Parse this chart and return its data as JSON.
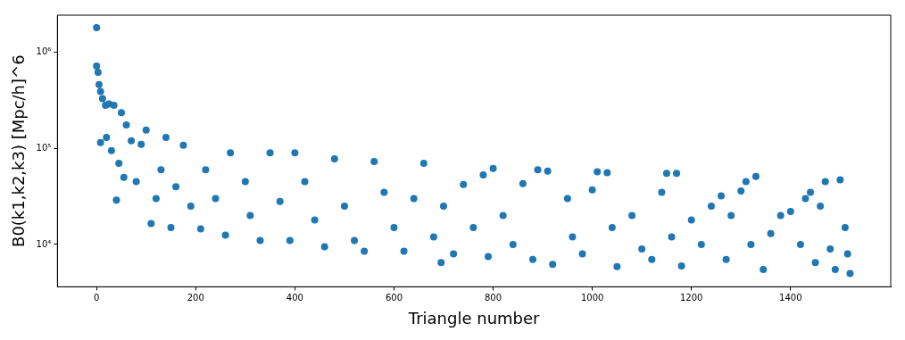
{
  "chart_data": {
    "type": "scatter",
    "xlabel": "Triangle number",
    "ylabel": "B0(k1,k2,k3) [Mpc/h]^6",
    "color": "#1f77b4",
    "marker": "circle",
    "log": "y",
    "grid": false,
    "legend": false,
    "xlim": [
      -79,
      1602
    ],
    "xticks": [
      0,
      200,
      400,
      600,
      800,
      1000,
      1200,
      1400
    ],
    "ylim": [
      3630,
      2430000
    ],
    "yticks": [
      {
        "value": 10000,
        "label": "10⁴"
      },
      {
        "value": 100000,
        "label": "10⁵"
      },
      {
        "value": 1000000,
        "label": "10⁶"
      }
    ],
    "x": [
      0,
      0,
      3,
      5,
      8,
      12,
      18,
      25,
      35,
      50,
      60,
      8,
      20,
      30,
      40,
      45,
      55,
      70,
      80,
      90,
      100,
      110,
      120,
      130,
      140,
      150,
      160,
      175,
      190,
      210,
      220,
      240,
      260,
      270,
      300,
      310,
      330,
      350,
      370,
      390,
      400,
      420,
      440,
      460,
      480,
      500,
      520,
      540,
      560,
      580,
      600,
      620,
      640,
      660,
      680,
      695,
      700,
      720,
      740,
      760,
      780,
      790,
      800,
      820,
      840,
      860,
      880,
      890,
      910,
      920,
      950,
      960,
      980,
      1000,
      1010,
      1030,
      1040,
      1050,
      1080,
      1100,
      1120,
      1140,
      1150,
      1160,
      1170,
      1180,
      1200,
      1220,
      1240,
      1260,
      1270,
      1280,
      1300,
      1310,
      1320,
      1330,
      1345,
      1360,
      1380,
      1400,
      1420,
      1430,
      1440,
      1450,
      1460,
      1470,
      1480,
      1490,
      1500,
      1510,
      1515,
      1520
    ],
    "values": [
      1800000,
      720000,
      620000,
      460000,
      390000,
      330000,
      280000,
      290000,
      280000,
      235000,
      175000,
      115000,
      130000,
      95000,
      29000,
      70000,
      50000,
      120000,
      45000,
      110000,
      155000,
      16500,
      30000,
      60000,
      130000,
      15000,
      40000,
      108000,
      25000,
      14500,
      60000,
      30000,
      12500,
      90000,
      45000,
      20000,
      11000,
      90000,
      28000,
      11000,
      90000,
      45000,
      18000,
      9500,
      78000,
      25000,
      11000,
      8500,
      73000,
      35000,
      15000,
      8500,
      30000,
      70000,
      12000,
      6500,
      25000,
      8000,
      42000,
      15000,
      53000,
      7500,
      62000,
      20000,
      10000,
      43000,
      7000,
      60000,
      58000,
      6200,
      30000,
      12000,
      8000,
      37000,
      57000,
      56000,
      15000,
      5900,
      20000,
      9000,
      7000,
      35000,
      55000,
      12000,
      55000,
      6000,
      18000,
      10000,
      25000,
      32000,
      7000,
      20000,
      36000,
      45000,
      10000,
      51000,
      5500,
      13000,
      20000,
      22000,
      10000,
      30000,
      35000,
      6500,
      25000,
      45000,
      9000,
      5500,
      47000,
      15000,
      8000,
      5000
    ]
  }
}
